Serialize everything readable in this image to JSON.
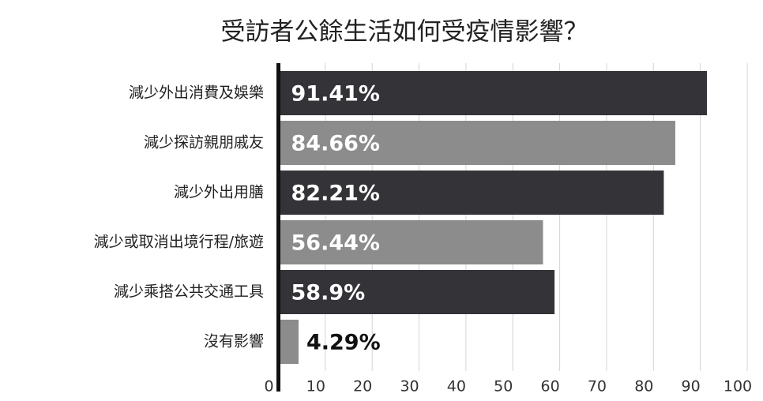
{
  "chart_data": {
    "type": "bar",
    "orientation": "horizontal",
    "title": "受訪者公餘生活如何受疫情影響？",
    "categories": [
      "減少外出消費及娛樂",
      "減少探訪親朋戚友",
      "減少外出用膳",
      "減少或取消出境行程/旅遊",
      "減少乘搭公共交通工具",
      "沒有影響"
    ],
    "values": [
      91.41,
      84.66,
      82.21,
      56.44,
      58.9,
      4.29
    ],
    "value_labels": [
      "91.41%",
      "84.66%",
      "82.21%",
      "56.44%",
      "58.9%",
      "4.29%"
    ],
    "colors": [
      "#333338",
      "#8c8c8c",
      "#333338",
      "#8c8c8c",
      "#333338",
      "#8c8c8c"
    ],
    "xlim": [
      0,
      100
    ],
    "xticks": [
      0,
      10,
      20,
      30,
      40,
      50,
      60,
      70,
      80,
      90,
      100
    ],
    "grid": true
  }
}
